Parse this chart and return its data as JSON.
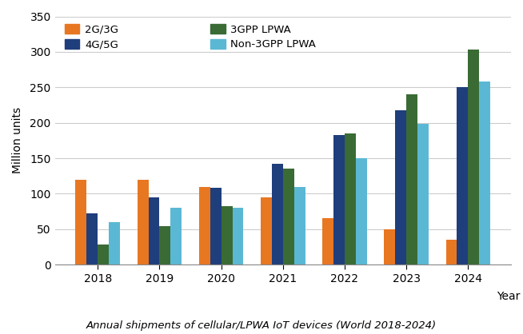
{
  "years": [
    "2018",
    "2019",
    "2020",
    "2021",
    "2022",
    "2023",
    "2024"
  ],
  "series": {
    "2G/3G": [
      120,
      120,
      110,
      95,
      65,
      50,
      35
    ],
    "4G/5G": [
      72,
      95,
      108,
      142,
      183,
      218,
      250
    ],
    "3GPP LPWA": [
      28,
      54,
      82,
      135,
      185,
      240,
      303
    ],
    "Non-3GPP LPWA": [
      60,
      80,
      80,
      110,
      150,
      198,
      258
    ]
  },
  "colors": {
    "2G/3G": "#E87722",
    "4G/5G": "#1F3E7C",
    "3GPP LPWA": "#3A6B35",
    "Non-3GPP LPWA": "#5BB8D4"
  },
  "ylabel": "Million units",
  "xlabel": "Year",
  "ylim": [
    0,
    350
  ],
  "yticks": [
    0,
    50,
    100,
    150,
    200,
    250,
    300,
    350
  ],
  "caption": "Annual shipments of cellular/LPWA IoT devices (World 2018-2024)",
  "background_color": "#ffffff",
  "grid_color": "#cccccc"
}
